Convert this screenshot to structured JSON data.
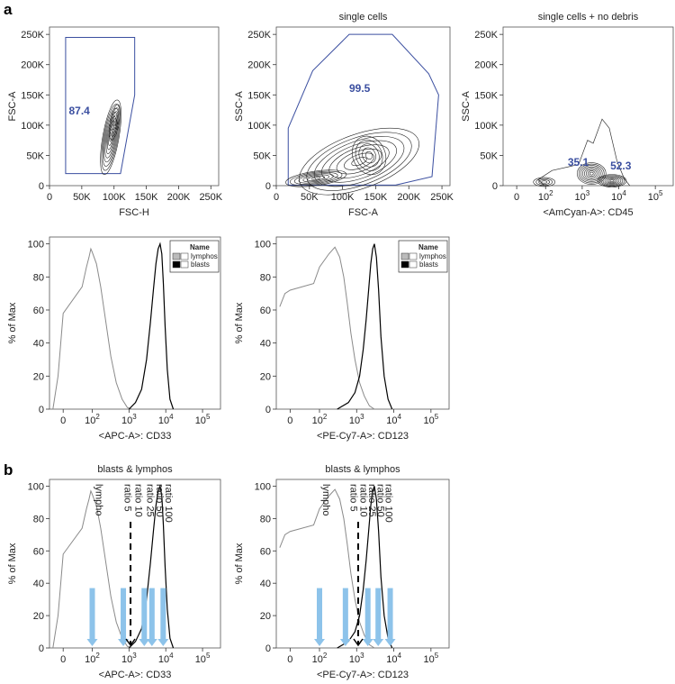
{
  "figure": {
    "panel_a": "a",
    "panel_b": "b",
    "colors": {
      "gate": "#3b4fa0",
      "lymphos": "#8a8a8a",
      "blasts": "#000000",
      "arrow": "#8dc3ea"
    }
  },
  "chart_data": [
    {
      "id": "a1",
      "type": "contour",
      "title": "",
      "xlabel": "FSC-H",
      "ylabel": "FSC-A",
      "xticks": [
        "0",
        "50K",
        "100K",
        "150K",
        "200K",
        "250K"
      ],
      "yticks": [
        "0",
        "50K",
        "100K",
        "150K",
        "200K",
        "250K"
      ],
      "xlim": [
        0,
        262144
      ],
      "ylim": [
        0,
        262144
      ],
      "gates": [
        {
          "label": "87.4",
          "value": 87.4
        }
      ],
      "populations": [
        {
          "x": 95000,
          "y": 80000
        }
      ]
    },
    {
      "id": "a2",
      "type": "contour",
      "title": "single cells",
      "xlabel": "FSC-A",
      "ylabel": "SSC-A",
      "xticks": [
        "0",
        "50K",
        "100K",
        "150K",
        "200K",
        "250K"
      ],
      "yticks": [
        "0",
        "50K",
        "100K",
        "150K",
        "200K",
        "250K"
      ],
      "xlim": [
        0,
        262144
      ],
      "ylim": [
        0,
        262144
      ],
      "gates": [
        {
          "label": "99.5",
          "value": 99.5
        }
      ],
      "populations": [
        {
          "x": 60000,
          "y": 12000
        },
        {
          "x": 125000,
          "y": 40000
        }
      ]
    },
    {
      "id": "a3",
      "type": "contour",
      "title": "single cells + no debris",
      "xlabel": "<AmCyan-A>: CD45",
      "ylabel": "SSC-A",
      "xticks": [
        "0",
        "10^2",
        "10^3",
        "10^4",
        "10^5"
      ],
      "yticks": [
        "0",
        "50K",
        "100K",
        "150K",
        "200K",
        "250K"
      ],
      "xscale": "biexponential",
      "ylim": [
        0,
        262144
      ],
      "gates": [
        {
          "label": "35.1",
          "value": 35.1
        },
        {
          "label": "52.3",
          "value": 52.3
        }
      ],
      "populations": [
        {
          "x": 1800,
          "y": 20000
        },
        {
          "x": 6500,
          "y": 8000
        },
        {
          "x": 80,
          "y": 6000
        }
      ]
    },
    {
      "id": "a4",
      "type": "line",
      "title": "",
      "xlabel": "<APC-A>: CD33",
      "ylabel": "% of Max",
      "xticks": [
        "0",
        "10^2",
        "10^3",
        "10^4",
        "10^5"
      ],
      "yticks": [
        "0",
        "20",
        "40",
        "60",
        "80",
        "100"
      ],
      "ylim": [
        0,
        100
      ],
      "legend": {
        "title": "Name",
        "entries": [
          "lymphos",
          "blasts"
        ],
        "position": "top-right"
      },
      "series": [
        {
          "name": "lymphos",
          "x": [
            -80,
            -40,
            0,
            20,
            40,
            60,
            80,
            100,
            130,
            170,
            230,
            320,
            450,
            650,
            900,
            1200
          ],
          "y": [
            0,
            20,
            58,
            74,
            86,
            92,
            97,
            95,
            88,
            74,
            54,
            32,
            16,
            6,
            1,
            0
          ]
        },
        {
          "name": "blasts",
          "x": [
            1000,
            1500,
            2200,
            3000,
            3800,
            4600,
            5400,
            6200,
            7000,
            7800,
            8600,
            9600,
            11000,
            13000,
            16000
          ],
          "y": [
            0,
            4,
            12,
            30,
            52,
            72,
            88,
            97,
            100,
            94,
            76,
            50,
            24,
            6,
            0
          ]
        }
      ]
    },
    {
      "id": "a5",
      "type": "line",
      "title": "",
      "xlabel": "<PE-Cy7-A>: CD123",
      "ylabel": "% of Max",
      "xticks": [
        "0",
        "10^2",
        "10^3",
        "10^4",
        "10^5"
      ],
      "yticks": [
        "0",
        "20",
        "40",
        "60",
        "80",
        "100"
      ],
      "ylim": [
        0,
        100
      ],
      "legend": {
        "title": "Name",
        "entries": [
          "lymphos",
          "blasts"
        ],
        "position": "top-right"
      },
      "series": [
        {
          "name": "lymphos",
          "x": [
            -80,
            -40,
            0,
            40,
            100,
            180,
            260,
            350,
            450,
            560,
            700,
            900,
            1200,
            1600,
            2200,
            3000
          ],
          "y": [
            62,
            70,
            72,
            76,
            86,
            94,
            98,
            92,
            80,
            64,
            46,
            30,
            16,
            8,
            2,
            0
          ]
        },
        {
          "name": "blasts",
          "x": [
            300,
            600,
            900,
            1200,
            1500,
            1800,
            2100,
            2400,
            2700,
            3000,
            3400,
            3900,
            4500,
            5500,
            7000,
            9000
          ],
          "y": [
            0,
            4,
            10,
            20,
            36,
            54,
            72,
            88,
            97,
            100,
            92,
            72,
            44,
            20,
            6,
            0
          ]
        }
      ]
    },
    {
      "id": "b1",
      "type": "line",
      "title": "blasts & lymphos",
      "xlabel": "<APC-A>: CD33",
      "ylabel": "% of Max",
      "xticks": [
        "0",
        "10^2",
        "10^3",
        "10^4",
        "10^5"
      ],
      "yticks": [
        "0",
        "20",
        "40",
        "60",
        "80",
        "100"
      ],
      "ylim": [
        0,
        100
      ],
      "series": [
        {
          "name": "lympho",
          "x": [
            -80,
            -40,
            0,
            20,
            40,
            60,
            80,
            100,
            130,
            170,
            230,
            320,
            450,
            650,
            900,
            1200
          ],
          "y": [
            0,
            20,
            58,
            74,
            86,
            92,
            97,
            95,
            88,
            74,
            54,
            32,
            16,
            6,
            1,
            0
          ]
        },
        {
          "name": "blasts",
          "x": [
            1000,
            1500,
            2200,
            3000,
            3800,
            4600,
            5400,
            6200,
            7000,
            7800,
            8600,
            9600,
            11000,
            13000,
            16000
          ],
          "y": [
            0,
            4,
            12,
            30,
            52,
            72,
            88,
            97,
            100,
            94,
            76,
            50,
            24,
            6,
            0
          ]
        }
      ],
      "annotations": [
        {
          "label": "lympho",
          "x": 100
        },
        {
          "label": "ratio 5",
          "x": 600
        },
        {
          "label": "ratio 10",
          "x": 1200
        },
        {
          "label": "ratio 25",
          "x": 2500
        },
        {
          "label": "ratio 50",
          "x": 4500
        },
        {
          "label": "ratio 100",
          "x": 8000
        }
      ],
      "arrows": [
        {
          "x": 100,
          "from": 37,
          "to": 0
        },
        {
          "x": 700,
          "from": 37,
          "to": 0
        },
        {
          "x": 2600,
          "from": 37,
          "to": 0
        },
        {
          "x": 4200,
          "from": 37,
          "to": 0
        },
        {
          "x": 8500,
          "from": 37,
          "to": 0
        }
      ],
      "dashed_arrow": {
        "x": 1100,
        "from": 78,
        "to": 0
      }
    },
    {
      "id": "b2",
      "type": "line",
      "title": "blasts & lymphos",
      "xlabel": "<PE-Cy7-A>: CD123",
      "ylabel": "% of Max",
      "xticks": [
        "0",
        "10^2",
        "10^3",
        "10^4",
        "10^5"
      ],
      "yticks": [
        "0",
        "20",
        "40",
        "60",
        "80",
        "100"
      ],
      "ylim": [
        0,
        100
      ],
      "series": [
        {
          "name": "lympho",
          "x": [
            -80,
            -40,
            0,
            40,
            100,
            180,
            260,
            350,
            450,
            560,
            700,
            900,
            1200,
            1600,
            2200,
            3000
          ],
          "y": [
            62,
            70,
            72,
            76,
            86,
            94,
            98,
            92,
            80,
            64,
            46,
            30,
            16,
            8,
            2,
            0
          ]
        },
        {
          "name": "blasts",
          "x": [
            300,
            600,
            900,
            1200,
            1500,
            1800,
            2100,
            2400,
            2700,
            3000,
            3400,
            3900,
            4500,
            5500,
            7000,
            9000
          ],
          "y": [
            0,
            4,
            10,
            20,
            36,
            54,
            72,
            88,
            97,
            100,
            92,
            72,
            44,
            20,
            6,
            0
          ]
        }
      ],
      "annotations": [
        {
          "label": "lympho",
          "x": 100
        },
        {
          "label": "ratio 5",
          "x": 550
        },
        {
          "label": "ratio 10",
          "x": 1000
        },
        {
          "label": "ratio 25",
          "x": 1700
        },
        {
          "label": "ratio 50",
          "x": 2900
        },
        {
          "label": "ratio 100",
          "x": 4800
        }
      ],
      "arrows": [
        {
          "x": 100,
          "from": 37,
          "to": 0
        },
        {
          "x": 500,
          "from": 37,
          "to": 0
        },
        {
          "x": 2000,
          "from": 37,
          "to": 0
        },
        {
          "x": 3800,
          "from": 37,
          "to": 0
        },
        {
          "x": 8000,
          "from": 37,
          "to": 0
        }
      ],
      "dashed_arrow": {
        "x": 1100,
        "from": 78,
        "to": 0
      }
    }
  ]
}
